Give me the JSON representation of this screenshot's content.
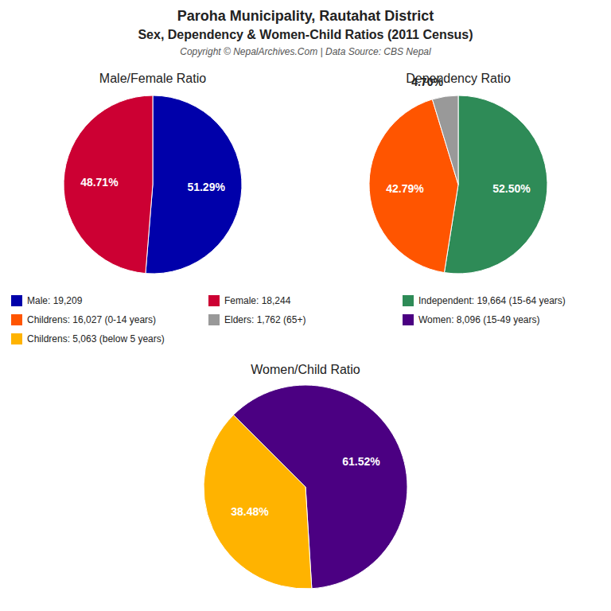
{
  "title": "Paroha Municipality, Rautahat District",
  "subtitle": "Sex, Dependency & Women-Child Ratios (2011 Census)",
  "annotations": [
    "Copyright © NepalArchives.Com | Data Source: CBS Nepal"
  ],
  "chart_data": [
    {
      "type": "pie",
      "title": "Male/Female Ratio",
      "categories": [
        "Male: 19,209",
        "Female: 18,244"
      ],
      "values": [
        51.29,
        48.71
      ],
      "value_labels": [
        "51.29%",
        "48.71%"
      ],
      "colors": [
        "#0000AA",
        "#CC0033"
      ],
      "data_labels": true,
      "legend": "bottom"
    },
    {
      "type": "pie",
      "title": "Dependency Ratio",
      "categories": [
        "Independent: 19,664 (15-64 years)",
        "Childrens: 16,027 (0-14 years)",
        "Elders: 1,762 (65+)"
      ],
      "values": [
        52.5,
        42.79,
        4.7
      ],
      "value_labels": [
        "52.50%",
        "42.79%",
        "4.70%"
      ],
      "colors": [
        "#2E8B57",
        "#FF5500",
        "#999999"
      ],
      "data_labels": true,
      "legend": "bottom"
    },
    {
      "type": "pie",
      "title": "Women/Child Ratio",
      "categories": [
        "Women: 8,096 (15-49 years)",
        "Childrens: 5,063 (below 5 years)"
      ],
      "values": [
        61.52,
        38.48
      ],
      "value_labels": [
        "61.52%",
        "38.48%"
      ],
      "colors": [
        "#4B0082",
        "#FFB300"
      ],
      "data_labels": true,
      "legend": "top"
    }
  ]
}
